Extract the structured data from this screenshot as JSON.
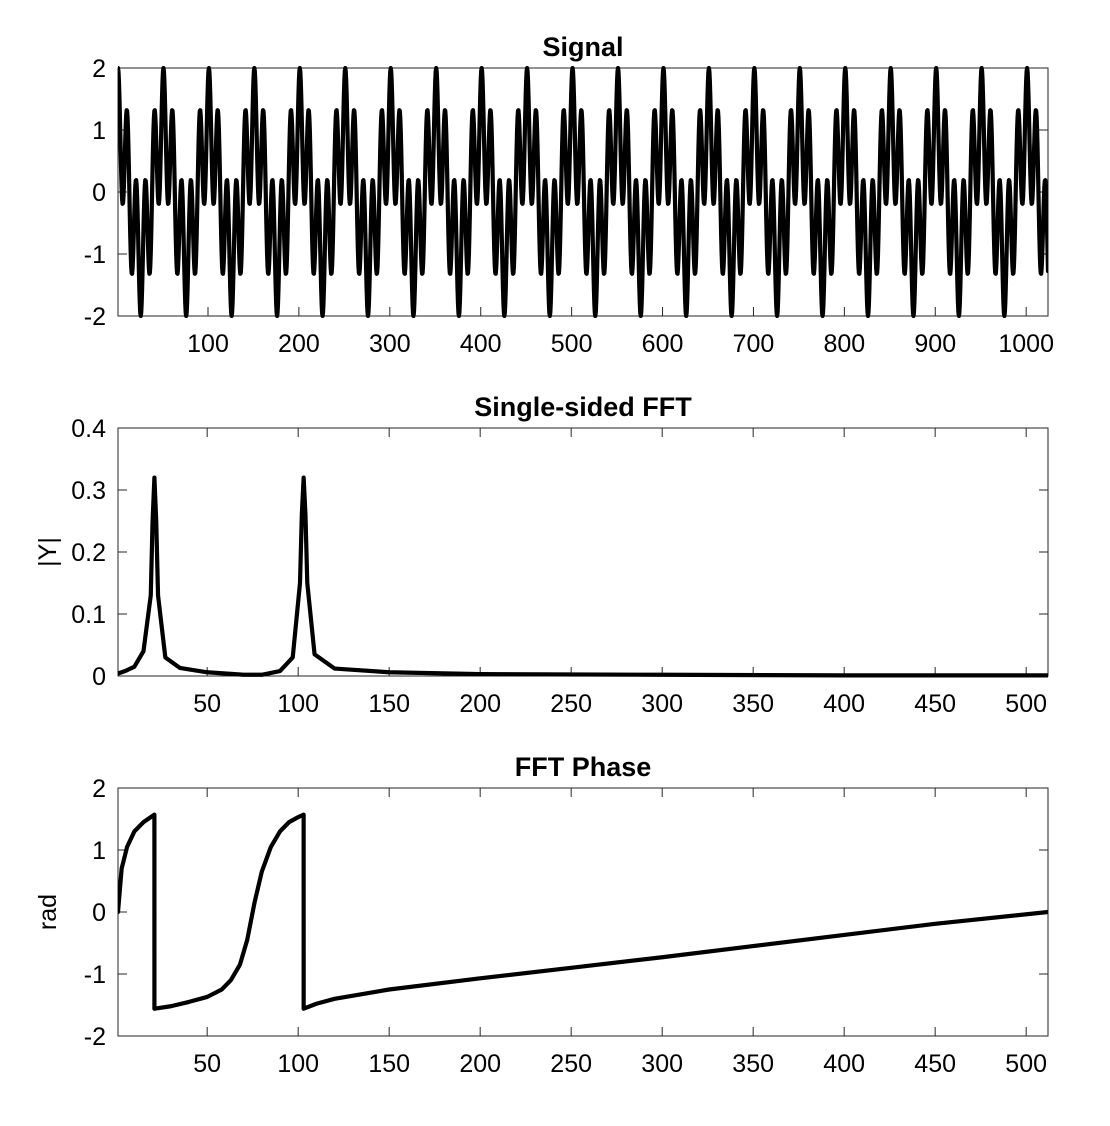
{
  "chart_data": [
    {
      "type": "line",
      "title": "Signal",
      "xlabel": "",
      "ylabel": "",
      "xlim": [
        1,
        1024
      ],
      "ylim": [
        -2,
        2
      ],
      "xticks": [
        100,
        200,
        300,
        400,
        500,
        600,
        700,
        800,
        900,
        1000
      ],
      "yticks": [
        -2,
        -1,
        0,
        1,
        2
      ],
      "grid": false,
      "series": [
        {
          "function": "sin(2*pi*n/50 + pi/2) + sin(2*pi*n/10 + pi/2)",
          "x_range": [
            1,
            1024
          ],
          "description_values": {
            "period_component_1": 50,
            "period_component_2": 10,
            "amplitude_component_1": 1,
            "amplitude_component_2": 1
          }
        }
      ]
    },
    {
      "type": "line",
      "title": "Single-sided FFT",
      "xlabel": "",
      "ylabel": "|Y|",
      "xlim": [
        1,
        512
      ],
      "ylim": [
        0,
        0.4
      ],
      "xticks": [
        50,
        100,
        150,
        200,
        250,
        300,
        350,
        400,
        450,
        500
      ],
      "yticks": [
        0,
        0.1,
        0.2,
        0.3,
        0.4
      ],
      "grid": false,
      "series": [
        {
          "peaks": [
            {
              "x": 21,
              "y": 0.32
            },
            {
              "x": 103,
              "y": 0.32
            }
          ],
          "x": [
            1,
            5,
            10,
            15,
            19,
            20,
            21,
            22,
            23,
            27,
            35,
            50,
            70,
            80,
            90,
            97,
            101,
            102,
            103,
            104,
            105,
            109,
            120,
            150,
            200,
            300,
            400,
            512
          ],
          "y": [
            0.004,
            0.008,
            0.015,
            0.04,
            0.13,
            0.25,
            0.32,
            0.25,
            0.13,
            0.03,
            0.013,
            0.006,
            0.002,
            0.002,
            0.008,
            0.03,
            0.15,
            0.26,
            0.32,
            0.26,
            0.15,
            0.035,
            0.012,
            0.006,
            0.003,
            0.002,
            0.001,
            0.001
          ]
        }
      ]
    },
    {
      "type": "line",
      "title": "FFT Phase",
      "xlabel": "",
      "ylabel": "rad",
      "xlim": [
        1,
        512
      ],
      "ylim": [
        -2,
        2
      ],
      "xticks": [
        50,
        100,
        150,
        200,
        250,
        300,
        350,
        400,
        450,
        500
      ],
      "yticks": [
        -2,
        -1,
        0,
        1,
        2
      ],
      "grid": false,
      "series": [
        {
          "x": [
            1,
            3,
            6,
            10,
            15,
            20,
            21,
            21.01,
            30,
            40,
            50,
            58,
            63,
            68,
            72,
            76,
            80,
            85,
            90,
            95,
            100,
            103,
            103.01,
            110,
            120,
            150,
            200,
            250,
            300,
            350,
            400,
            450,
            512
          ],
          "y": [
            0,
            0.7,
            1.05,
            1.3,
            1.45,
            1.55,
            1.57,
            -1.56,
            -1.52,
            -1.45,
            -1.37,
            -1.25,
            -1.1,
            -0.85,
            -0.45,
            0.15,
            0.65,
            1.05,
            1.3,
            1.45,
            1.53,
            1.57,
            -1.56,
            -1.48,
            -1.4,
            -1.25,
            -1.07,
            -0.9,
            -0.73,
            -0.55,
            -0.37,
            -0.19,
            0.0
          ]
        }
      ]
    }
  ]
}
